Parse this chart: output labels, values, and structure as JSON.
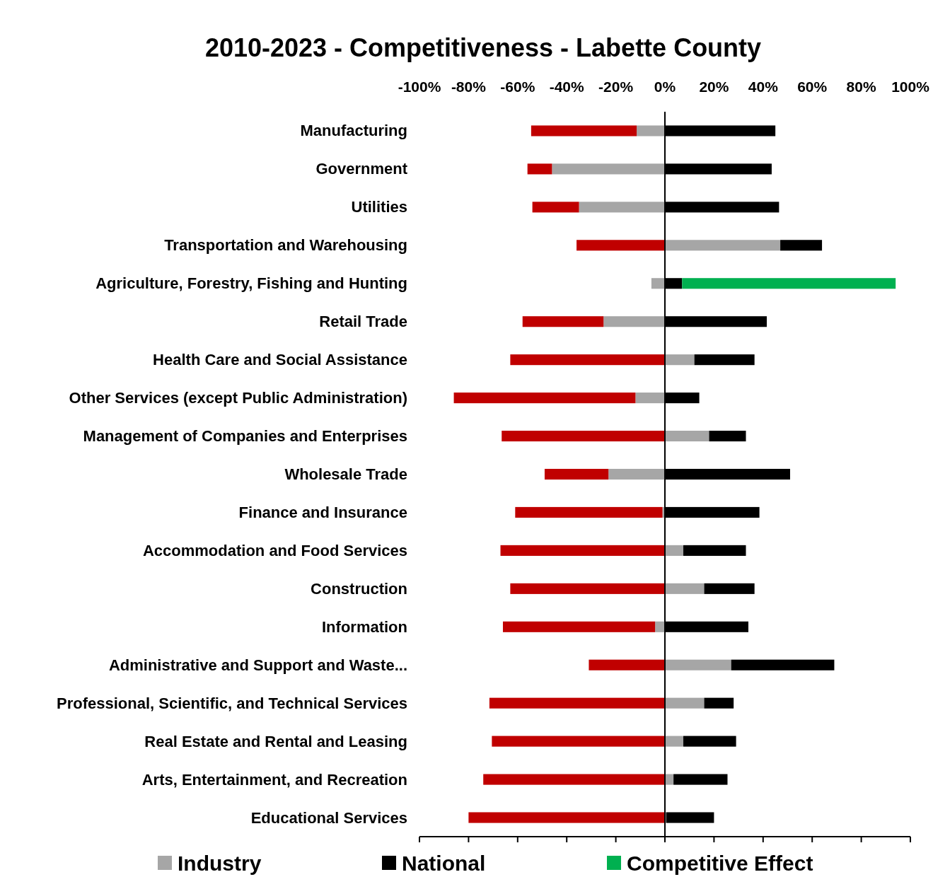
{
  "chart_data": {
    "type": "bar",
    "title": "2010-2023 - Competitiveness - Labette County",
    "orientation": "horizontal",
    "stacked": true,
    "legend": "bottom",
    "categories": [
      "Manufacturing",
      "Government",
      "Utilities",
      "Transportation and Warehousing",
      "Agriculture, Forestry, Fishing and Hunting",
      "Retail Trade",
      "Health Care and Social Assistance",
      "Other Services (except Public Administration)",
      "Management of Companies and Enterprises",
      "Wholesale Trade",
      "Finance and Insurance",
      "Accommodation and Food Services",
      "Construction",
      "Information",
      "Administrative and Support and Waste...",
      "Professional, Scientific, and Technical Services",
      "Real Estate and Rental and Leasing",
      "Arts, Entertainment, and Recreation",
      "Educational Services"
    ],
    "xlim": [
      -100,
      100
    ],
    "xticks": [
      {
        "value": -100,
        "label": "-100%"
      },
      {
        "value": -80,
        "label": "-80%"
      },
      {
        "value": -60,
        "label": "-60%"
      },
      {
        "value": -40,
        "label": "-40%"
      },
      {
        "value": -20,
        "label": "-20%"
      },
      {
        "value": 0,
        "label": "0%"
      },
      {
        "value": 20,
        "label": "20%"
      },
      {
        "value": 40,
        "label": "40%"
      },
      {
        "value": 60,
        "label": "60%"
      },
      {
        "value": 80,
        "label": "80%"
      },
      {
        "value": 100,
        "label": "100%"
      }
    ],
    "series": [
      {
        "name": "Industry",
        "color": "#a6a6a6",
        "values": [
          -11.5,
          -46,
          -35,
          47,
          -5.5,
          -25,
          12,
          -12,
          18,
          -23,
          -1,
          7.5,
          16,
          -4,
          27,
          16,
          7.5,
          3.5,
          0.5
        ]
      },
      {
        "name": "National",
        "color": "#000000",
        "values": [
          45,
          43.5,
          46.5,
          17,
          7,
          41.5,
          24.5,
          14,
          15,
          51,
          38.5,
          25.5,
          20.5,
          34,
          42,
          12,
          21.5,
          22,
          19.5
        ]
      },
      {
        "name": "Competitive Effect",
        "color": "#00b050",
        "colors": [
          "#c00000",
          "#c00000",
          "#c00000",
          "#c00000",
          "#00b050",
          "#c00000",
          "#c00000",
          "#c00000",
          "#c00000",
          "#c00000",
          "#c00000",
          "#c00000",
          "#c00000",
          "#c00000",
          "#c00000",
          "#c00000",
          "#c00000",
          "#c00000",
          "#c00000"
        ],
        "values": [
          -43,
          -10,
          -19,
          -36,
          87,
          -33,
          -63,
          -74,
          -66.5,
          -26,
          -60,
          -67,
          -63,
          -62,
          -31,
          -71.5,
          -70.5,
          -74,
          -80
        ]
      }
    ]
  }
}
